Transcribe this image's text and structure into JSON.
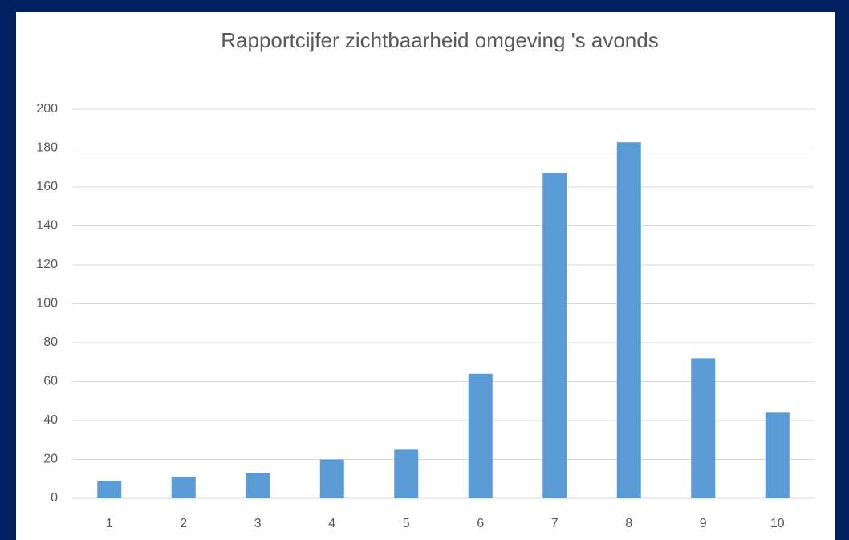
{
  "chart_data": {
    "type": "bar",
    "title": "Rapportcijfer zichtbaarheid omgeving 's avonds",
    "categories": [
      "1",
      "2",
      "3",
      "4",
      "5",
      "6",
      "7",
      "8",
      "9",
      "10"
    ],
    "values": [
      9,
      11,
      13,
      20,
      25,
      64,
      167,
      183,
      72,
      44
    ],
    "color": "#5b9bd5",
    "ylim": [
      0,
      200
    ],
    "yticks": [
      0,
      20,
      40,
      60,
      80,
      100,
      120,
      140,
      160,
      180,
      200
    ],
    "grid": true
  }
}
